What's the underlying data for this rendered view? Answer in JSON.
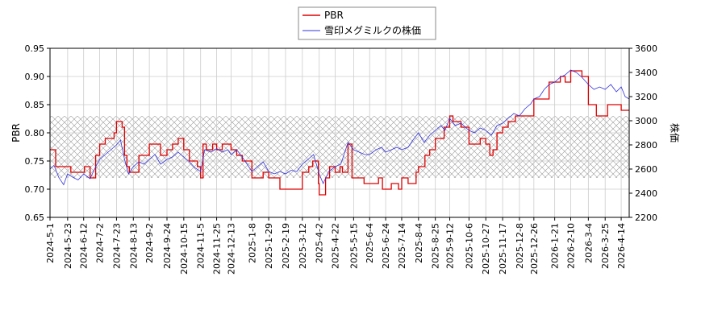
{
  "chart_data": {
    "type": "line",
    "title": "",
    "legend": {
      "placement": "top-center",
      "entries": [
        {
          "name": "PBR",
          "color": "#dd0000"
        },
        {
          "name": "雪印メグミルクの株価",
          "color": "#3333dd"
        }
      ]
    },
    "grid": true,
    "band": {
      "axis": "left",
      "from": 0.72,
      "to": 0.83,
      "pattern": "crosshatch"
    },
    "x_axis": {
      "type": "date",
      "range": [
        "2024-5-1",
        "2026-4-24"
      ],
      "tick_labels": [
        "2024-5-1",
        "2024-5-23",
        "2024-6-12",
        "2024-7-2",
        "2024-7-23",
        "2024-8-13",
        "2024-9-2",
        "2024-9-24",
        "2024-10-15",
        "2024-11-5",
        "2024-11-25",
        "2024-12-13",
        "2025-1-8",
        "2025-1-29",
        "2025-2-19",
        "2025-3-12",
        "2025-4-2",
        "2025-4-22",
        "2025-5-15",
        "2025-6-4",
        "2025-6-24",
        "2025-7-14",
        "2025-8-4",
        "2025-8-25",
        "2025-9-12",
        "2025-10-6",
        "2025-10-27",
        "2025-11-17",
        "2025-12-8",
        "2025-12-26",
        "2026-1-21",
        "2026-2-10",
        "2026-3-4",
        "2026-3-25",
        "2026-4-14"
      ]
    },
    "y_left": {
      "label": "PBR",
      "range": [
        0.65,
        0.95
      ],
      "ticks": [
        "0.65",
        "0.70",
        "0.75",
        "0.80",
        "0.85",
        "0.90",
        "0.95"
      ]
    },
    "y_right": {
      "label": "株価",
      "range": [
        2200,
        3600
      ],
      "ticks": [
        "2200",
        "2400",
        "2600",
        "2800",
        "3000",
        "3200",
        "3400",
        "3600"
      ]
    },
    "series": [
      {
        "name": "PBR",
        "axis": "left",
        "color": "#dd0000",
        "points": [
          [
            "2024-5-1",
            0.77
          ],
          [
            "2024-5-8",
            0.74
          ],
          [
            "2024-5-23",
            0.74
          ],
          [
            "2024-5-27",
            0.73
          ],
          [
            "2024-6-12",
            0.73
          ],
          [
            "2024-6-13",
            0.74
          ],
          [
            "2024-6-20",
            0.72
          ],
          [
            "2024-6-27",
            0.76
          ],
          [
            "2024-7-2",
            0.78
          ],
          [
            "2024-7-9",
            0.79
          ],
          [
            "2024-7-20",
            0.8
          ],
          [
            "2024-7-23",
            0.82
          ],
          [
            "2024-7-30",
            0.81
          ],
          [
            "2024-8-2",
            0.76
          ],
          [
            "2024-8-5",
            0.74
          ],
          [
            "2024-8-8",
            0.73
          ],
          [
            "2024-8-20",
            0.76
          ],
          [
            "2024-8-28",
            0.76
          ],
          [
            "2024-9-2",
            0.78
          ],
          [
            "2024-9-9",
            0.78
          ],
          [
            "2024-9-16",
            0.76
          ],
          [
            "2024-9-24",
            0.77
          ],
          [
            "2024-10-1",
            0.78
          ],
          [
            "2024-10-8",
            0.79
          ],
          [
            "2024-10-15",
            0.77
          ],
          [
            "2024-10-22",
            0.75
          ],
          [
            "2024-11-1",
            0.74
          ],
          [
            "2024-11-5",
            0.72
          ],
          [
            "2024-11-8",
            0.78
          ],
          [
            "2024-11-12",
            0.77
          ],
          [
            "2024-11-20",
            0.78
          ],
          [
            "2024-11-25",
            0.77
          ],
          [
            "2024-12-2",
            0.78
          ],
          [
            "2024-12-13",
            0.77
          ],
          [
            "2024-12-20",
            0.76
          ],
          [
            "2024-12-27",
            0.75
          ],
          [
            "2025-1-8",
            0.72
          ],
          [
            "2025-1-15",
            0.72
          ],
          [
            "2025-1-22",
            0.73
          ],
          [
            "2025-1-29",
            0.72
          ],
          [
            "2025-2-5",
            0.72
          ],
          [
            "2025-2-12",
            0.7
          ],
          [
            "2025-2-19",
            0.7
          ],
          [
            "2025-3-5",
            0.7
          ],
          [
            "2025-3-12",
            0.73
          ],
          [
            "2025-3-20",
            0.74
          ],
          [
            "2025-3-25",
            0.75
          ],
          [
            "2025-4-1",
            0.71
          ],
          [
            "2025-4-2",
            0.69
          ],
          [
            "2025-4-7",
            0.69
          ],
          [
            "2025-4-10",
            0.72
          ],
          [
            "2025-4-15",
            0.74
          ],
          [
            "2025-4-22",
            0.73
          ],
          [
            "2025-4-28",
            0.74
          ],
          [
            "2025-5-1",
            0.73
          ],
          [
            "2025-5-8",
            0.78
          ],
          [
            "2025-5-13",
            0.72
          ],
          [
            "2025-5-15",
            0.72
          ],
          [
            "2025-5-28",
            0.71
          ],
          [
            "2025-6-4",
            0.71
          ],
          [
            "2025-6-15",
            0.72
          ],
          [
            "2025-6-20",
            0.7
          ],
          [
            "2025-6-24",
            0.7
          ],
          [
            "2025-7-1",
            0.71
          ],
          [
            "2025-7-10",
            0.7
          ],
          [
            "2025-7-14",
            0.72
          ],
          [
            "2025-7-22",
            0.71
          ],
          [
            "2025-8-1",
            0.73
          ],
          [
            "2025-8-4",
            0.74
          ],
          [
            "2025-8-12",
            0.76
          ],
          [
            "2025-8-18",
            0.77
          ],
          [
            "2025-8-25",
            0.79
          ],
          [
            "2025-9-1",
            0.79
          ],
          [
            "2025-9-5",
            0.81
          ],
          [
            "2025-9-12",
            0.83
          ],
          [
            "2025-9-16",
            0.82
          ],
          [
            "2025-9-26",
            0.81
          ],
          [
            "2025-10-6",
            0.78
          ],
          [
            "2025-10-14",
            0.78
          ],
          [
            "2025-10-20",
            0.79
          ],
          [
            "2025-10-27",
            0.78
          ],
          [
            "2025-11-1",
            0.76
          ],
          [
            "2025-11-5",
            0.77
          ],
          [
            "2025-11-10",
            0.8
          ],
          [
            "2025-11-17",
            0.81
          ],
          [
            "2025-11-24",
            0.82
          ],
          [
            "2025-12-3",
            0.83
          ],
          [
            "2025-12-8",
            0.83
          ],
          [
            "2025-12-15",
            0.83
          ],
          [
            "2025-12-26",
            0.86
          ],
          [
            "2026-1-8",
            0.86
          ],
          [
            "2026-1-14",
            0.89
          ],
          [
            "2026-1-21",
            0.89
          ],
          [
            "2026-1-28",
            0.9
          ],
          [
            "2026-2-3",
            0.89
          ],
          [
            "2026-2-10",
            0.91
          ],
          [
            "2026-2-20",
            0.91
          ],
          [
            "2026-2-24",
            0.9
          ],
          [
            "2026-3-2",
            0.9
          ],
          [
            "2026-3-4",
            0.85
          ],
          [
            "2026-3-9",
            0.85
          ],
          [
            "2026-3-14",
            0.83
          ],
          [
            "2026-3-25",
            0.83
          ],
          [
            "2026-3-28",
            0.85
          ],
          [
            "2026-4-10",
            0.85
          ],
          [
            "2026-4-14",
            0.84
          ],
          [
            "2026-4-24",
            0.84
          ]
        ]
      },
      {
        "name": "雪印メグミルクの株価",
        "axis": "right",
        "color": "#3333dd",
        "points": [
          [
            "2024-5-1",
            2600
          ],
          [
            "2024-5-6",
            2630
          ],
          [
            "2024-5-12",
            2530
          ],
          [
            "2024-5-18",
            2470
          ],
          [
            "2024-5-23",
            2560
          ],
          [
            "2024-5-30",
            2530
          ],
          [
            "2024-6-5",
            2510
          ],
          [
            "2024-6-12",
            2560
          ],
          [
            "2024-6-20",
            2520
          ],
          [
            "2024-6-27",
            2620
          ],
          [
            "2024-7-2",
            2680
          ],
          [
            "2024-7-9",
            2720
          ],
          [
            "2024-7-16",
            2760
          ],
          [
            "2024-7-23",
            2800
          ],
          [
            "2024-7-28",
            2840
          ],
          [
            "2024-8-2",
            2680
          ],
          [
            "2024-8-7",
            2560
          ],
          [
            "2024-8-13",
            2620
          ],
          [
            "2024-8-20",
            2660
          ],
          [
            "2024-8-26",
            2640
          ],
          [
            "2024-9-2",
            2680
          ],
          [
            "2024-9-9",
            2720
          ],
          [
            "2024-9-16",
            2640
          ],
          [
            "2024-9-24",
            2680
          ],
          [
            "2024-10-1",
            2700
          ],
          [
            "2024-10-8",
            2740
          ],
          [
            "2024-10-15",
            2700
          ],
          [
            "2024-10-22",
            2660
          ],
          [
            "2024-10-29",
            2610
          ],
          [
            "2024-11-5",
            2580
          ],
          [
            "2024-11-10",
            2760
          ],
          [
            "2024-11-18",
            2740
          ],
          [
            "2024-11-25",
            2770
          ],
          [
            "2024-12-2",
            2740
          ],
          [
            "2024-12-9",
            2760
          ],
          [
            "2024-12-13",
            2720
          ],
          [
            "2024-12-20",
            2760
          ],
          [
            "2024-12-27",
            2700
          ],
          [
            "2025-1-8",
            2580
          ],
          [
            "2025-1-15",
            2620
          ],
          [
            "2025-1-22",
            2660
          ],
          [
            "2025-1-29",
            2580
          ],
          [
            "2025-2-5",
            2560
          ],
          [
            "2025-2-12",
            2580
          ],
          [
            "2025-2-19",
            2560
          ],
          [
            "2025-2-26",
            2590
          ],
          [
            "2025-3-5",
            2580
          ],
          [
            "2025-3-12",
            2640
          ],
          [
            "2025-3-19",
            2680
          ],
          [
            "2025-3-26",
            2720
          ],
          [
            "2025-4-2",
            2560
          ],
          [
            "2025-4-7",
            2480
          ],
          [
            "2025-4-14",
            2580
          ],
          [
            "2025-4-22",
            2620
          ],
          [
            "2025-4-29",
            2640
          ],
          [
            "2025-5-8",
            2820
          ],
          [
            "2025-5-15",
            2760
          ],
          [
            "2025-5-22",
            2740
          ],
          [
            "2025-5-29",
            2720
          ],
          [
            "2025-6-4",
            2720
          ],
          [
            "2025-6-12",
            2760
          ],
          [
            "2025-6-19",
            2780
          ],
          [
            "2025-6-24",
            2740
          ],
          [
            "2025-7-1",
            2760
          ],
          [
            "2025-7-8",
            2780
          ],
          [
            "2025-7-14",
            2760
          ],
          [
            "2025-7-22",
            2780
          ],
          [
            "2025-7-28",
            2840
          ],
          [
            "2025-8-4",
            2900
          ],
          [
            "2025-8-11",
            2820
          ],
          [
            "2025-8-18",
            2880
          ],
          [
            "2025-8-25",
            2920
          ],
          [
            "2025-9-1",
            2960
          ],
          [
            "2025-9-6",
            2920
          ],
          [
            "2025-9-12",
            3020
          ],
          [
            "2025-9-19",
            2960
          ],
          [
            "2025-9-26",
            2980
          ],
          [
            "2025-10-6",
            2920
          ],
          [
            "2025-10-13",
            2900
          ],
          [
            "2025-10-20",
            2940
          ],
          [
            "2025-10-27",
            2920
          ],
          [
            "2025-11-3",
            2880
          ],
          [
            "2025-11-10",
            2960
          ],
          [
            "2025-11-17",
            2980
          ],
          [
            "2025-11-24",
            3020
          ],
          [
            "2025-12-1",
            3060
          ],
          [
            "2025-12-8",
            3040
          ],
          [
            "2025-12-15",
            3100
          ],
          [
            "2025-12-22",
            3140
          ],
          [
            "2025-12-26",
            3180
          ],
          [
            "2026-1-2",
            3200
          ],
          [
            "2026-1-8",
            3260
          ],
          [
            "2026-1-14",
            3300
          ],
          [
            "2026-1-21",
            3320
          ],
          [
            "2026-1-28",
            3360
          ],
          [
            "2026-2-3",
            3380
          ],
          [
            "2026-2-10",
            3420
          ],
          [
            "2026-2-17",
            3400
          ],
          [
            "2026-2-24",
            3360
          ],
          [
            "2026-3-4",
            3300
          ],
          [
            "2026-3-11",
            3260
          ],
          [
            "2026-3-18",
            3280
          ],
          [
            "2026-3-25",
            3260
          ],
          [
            "2026-4-1",
            3300
          ],
          [
            "2026-4-8",
            3240
          ],
          [
            "2026-4-14",
            3280
          ],
          [
            "2026-4-19",
            3200
          ],
          [
            "2026-4-24",
            3180
          ]
        ]
      }
    ]
  }
}
